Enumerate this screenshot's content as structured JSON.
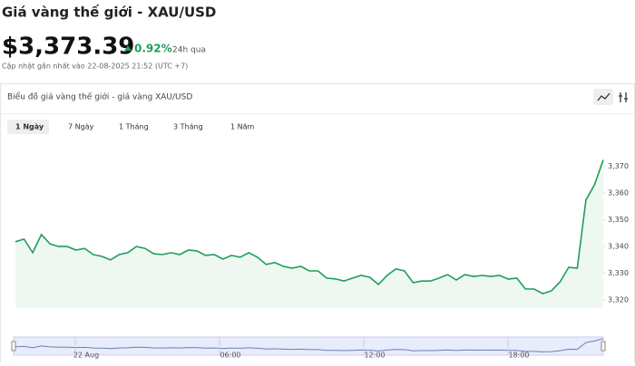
{
  "header": {
    "title": "Giá vàng thế giới - XAU/USD",
    "price": "$3,373.39",
    "change": "0.92%",
    "period": "24h qua",
    "updated": "Cập nhật gần nhất vào 22-08-2025 21:52 (UTC +7)"
  },
  "panel": {
    "title": "Biểu đồ giá vàng thế giới - giá vàng XAU/USD",
    "tabs": [
      "1 Ngày",
      "7 Ngày",
      "1 Tháng",
      "3 Tháng",
      "1 Năm"
    ]
  },
  "chart_data": {
    "type": "line",
    "values": [
      3341.8,
      3342.8,
      3337.7,
      3344.5,
      3341,
      3340,
      3340,
      3338.7,
      3339.3,
      3337,
      3336.3,
      3335,
      3337,
      3337.7,
      3340,
      3339.3,
      3337.3,
      3337,
      3337.7,
      3337,
      3338.7,
      3338.4,
      3336.7,
      3337,
      3335.3,
      3336.7,
      3336,
      3337.7,
      3336,
      3333.3,
      3334,
      3332.6,
      3331.9,
      3332.6,
      3330.9,
      3330.9,
      3328.2,
      3327.9,
      3327.1,
      3328.2,
      3329.2,
      3328.5,
      3325.8,
      3329.2,
      3331.6,
      3330.9,
      3326.5,
      3327.1,
      3327.1,
      3328.2,
      3329.5,
      3327.5,
      3329.5,
      3328.8,
      3329.2,
      3328.8,
      3329.2,
      3327.8,
      3328.2,
      3324.1,
      3324.1,
      3322.4,
      3323.4,
      3326.8,
      3332.2,
      3331.9,
      3357.4,
      3363.2,
      3372.4
    ],
    "color": "#1e9e5a",
    "ylim": [
      3317,
      3378
    ],
    "yticks": [
      {
        "value": 3320,
        "label": "3,320"
      },
      {
        "value": 3330,
        "label": "3,330"
      },
      {
        "value": 3340,
        "label": "3,340"
      },
      {
        "value": 3350,
        "label": "3,350"
      },
      {
        "value": 3360,
        "label": "3,360"
      },
      {
        "value": 3370,
        "label": "3,370"
      }
    ],
    "grid": false
  },
  "navigator": {
    "labels": [
      "22 Aug",
      "06:00",
      "12:00",
      "18:00"
    ]
  }
}
